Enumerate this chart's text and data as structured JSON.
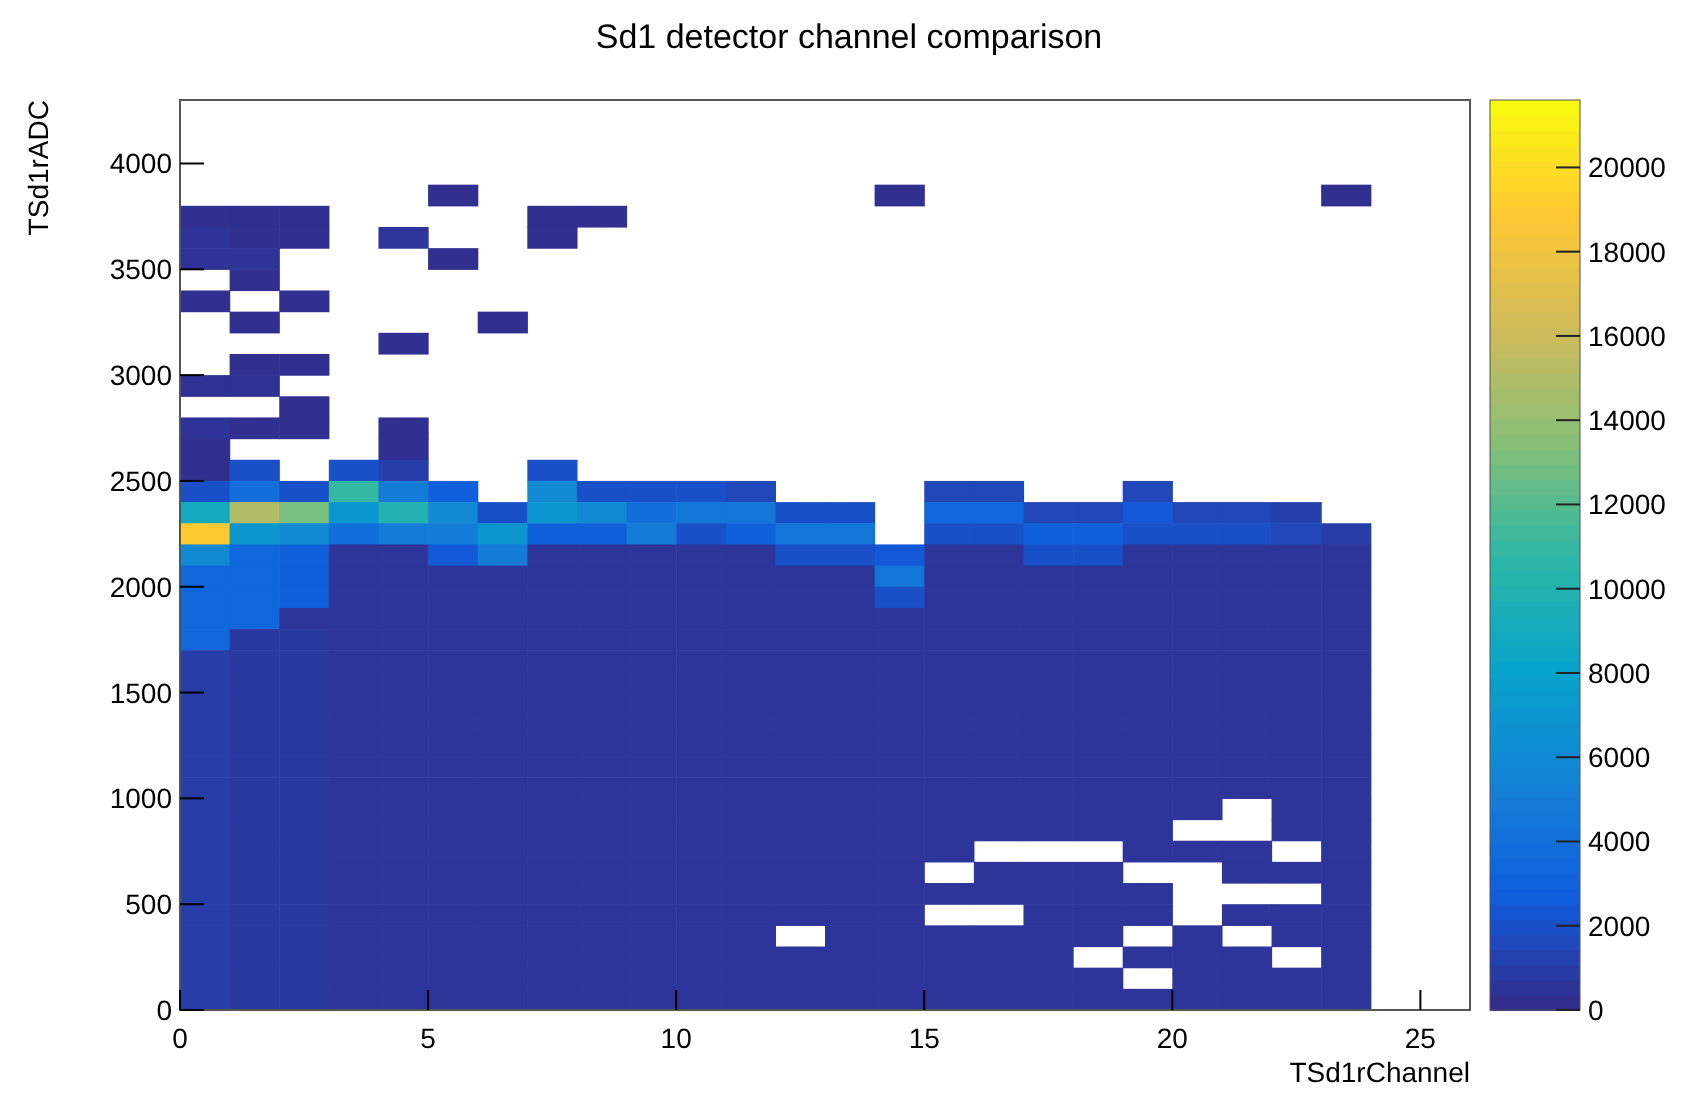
{
  "chart_data": {
    "type": "heatmap",
    "title": "Sd1 detector channel comparison",
    "xlabel": "TSd1rChannel",
    "ylabel": "TSd1rADC",
    "x": [
      0.5,
      1.5,
      2.5,
      3.5,
      4.5,
      5.5,
      6.5,
      7.5,
      8.5,
      9.5,
      10.5,
      11.5,
      12.5,
      13.5,
      14.5,
      15.5,
      16.5,
      17.5,
      18.5,
      19.5,
      20.5,
      21.5,
      22.5,
      23.5
    ],
    "y": [
      3850,
      3750,
      3650,
      3550,
      3450,
      3350,
      3250,
      3150,
      3050,
      2950,
      2850,
      2750,
      2650,
      2550,
      2450,
      2350,
      2250,
      2150,
      2050,
      1950,
      1850,
      1750,
      1650,
      1550,
      1450,
      1350,
      1250,
      1150,
      1050,
      950,
      850,
      750,
      650,
      550,
      450,
      350,
      250,
      150,
      50
    ],
    "xlim": [
      0,
      26
    ],
    "xticks": [
      0,
      5,
      10,
      15,
      20,
      25
    ],
    "ylim": [
      0,
      4300
    ],
    "yticks": [
      0,
      500,
      1000,
      1500,
      2000,
      2500,
      3000,
      3500,
      4000
    ],
    "clim": [
      0,
      21600
    ],
    "cticks": [
      0,
      2000,
      4000,
      6000,
      8000,
      10000,
      12000,
      14000,
      16000,
      18000,
      20000
    ],
    "grid": false,
    "cells": [
      [
        null,
        null,
        null,
        null,
        null,
        300,
        null,
        null,
        null,
        null,
        null,
        null,
        null,
        null,
        300,
        null,
        null,
        null,
        null,
        null,
        null,
        null,
        null,
        300
      ],
      [
        300,
        300,
        300,
        null,
        null,
        null,
        null,
        300,
        300,
        null,
        null,
        null,
        null,
        null,
        null,
        null,
        null,
        null,
        null,
        null,
        null,
        null,
        null,
        null
      ],
      [
        500,
        300,
        300,
        null,
        600,
        null,
        null,
        300,
        null,
        null,
        null,
        null,
        null,
        null,
        null,
        null,
        null,
        null,
        null,
        null,
        null,
        null,
        null,
        null
      ],
      [
        500,
        500,
        null,
        null,
        null,
        300,
        null,
        null,
        null,
        null,
        null,
        null,
        null,
        null,
        null,
        null,
        null,
        null,
        null,
        null,
        null,
        null,
        null,
        null
      ],
      [
        null,
        300,
        null,
        null,
        null,
        null,
        null,
        null,
        null,
        null,
        null,
        null,
        null,
        null,
        null,
        null,
        null,
        null,
        null,
        null,
        null,
        null,
        null,
        null
      ],
      [
        300,
        null,
        300,
        null,
        null,
        null,
        null,
        null,
        null,
        null,
        null,
        null,
        null,
        null,
        null,
        null,
        null,
        null,
        null,
        null,
        null,
        null,
        null,
        null
      ],
      [
        null,
        300,
        null,
        null,
        null,
        null,
        300,
        null,
        null,
        null,
        null,
        null,
        null,
        null,
        null,
        null,
        null,
        null,
        null,
        null,
        null,
        null,
        null,
        null
      ],
      [
        null,
        null,
        null,
        null,
        300,
        null,
        null,
        null,
        null,
        null,
        null,
        null,
        null,
        null,
        null,
        null,
        null,
        null,
        null,
        null,
        null,
        null,
        null,
        null
      ],
      [
        null,
        300,
        300,
        null,
        null,
        null,
        null,
        null,
        null,
        null,
        null,
        null,
        null,
        null,
        null,
        null,
        null,
        null,
        null,
        null,
        null,
        null,
        null,
        null
      ],
      [
        400,
        400,
        null,
        null,
        null,
        null,
        null,
        null,
        null,
        null,
        null,
        null,
        null,
        null,
        null,
        null,
        null,
        null,
        null,
        null,
        null,
        null,
        null,
        null
      ],
      [
        null,
        null,
        300,
        null,
        null,
        null,
        null,
        null,
        null,
        null,
        null,
        null,
        null,
        null,
        null,
        null,
        null,
        null,
        null,
        null,
        null,
        null,
        null,
        null
      ],
      [
        500,
        300,
        300,
        null,
        300,
        null,
        null,
        null,
        null,
        null,
        null,
        null,
        null,
        null,
        null,
        null,
        null,
        null,
        null,
        null,
        null,
        null,
        null,
        null
      ],
      [
        300,
        null,
        null,
        null,
        300,
        null,
        null,
        null,
        null,
        null,
        null,
        null,
        null,
        null,
        null,
        null,
        null,
        null,
        null,
        null,
        null,
        null,
        null,
        null
      ],
      [
        300,
        2000,
        null,
        2000,
        1000,
        null,
        null,
        2000,
        null,
        null,
        null,
        null,
        null,
        null,
        null,
        null,
        null,
        null,
        null,
        null,
        null,
        null,
        null,
        null
      ],
      [
        2000,
        4000,
        2000,
        11000,
        5000,
        3000,
        null,
        6000,
        2000,
        2000,
        2000,
        1500,
        null,
        null,
        null,
        1500,
        1500,
        null,
        null,
        1500,
        null,
        null,
        null,
        null
      ],
      [
        9000,
        15000,
        13000,
        7000,
        10000,
        6000,
        2000,
        7000,
        6000,
        4000,
        4500,
        4500,
        2000,
        2000,
        null,
        3500,
        3500,
        1500,
        1500,
        2500,
        1500,
        1500,
        1200,
        null
      ],
      [
        19000,
        7000,
        6000,
        4000,
        5000,
        5000,
        7000,
        3000,
        3000,
        5000,
        2000,
        3000,
        4500,
        4500,
        null,
        2000,
        2000,
        3000,
        3000,
        2000,
        2000,
        2000,
        1500,
        1000
      ],
      [
        6000,
        3500,
        3000,
        600,
        600,
        2500,
        5000,
        600,
        600,
        600,
        600,
        600,
        2000,
        2000,
        2500,
        600,
        600,
        2000,
        2000,
        600,
        600,
        600,
        600,
        600
      ],
      [
        3500,
        3500,
        3000,
        600,
        600,
        600,
        600,
        600,
        600,
        600,
        600,
        600,
        600,
        600,
        4500,
        600,
        600,
        600,
        600,
        600,
        600,
        600,
        600,
        600
      ],
      [
        3500,
        3500,
        3000,
        600,
        600,
        600,
        600,
        600,
        600,
        600,
        600,
        600,
        600,
        600,
        2000,
        600,
        600,
        600,
        600,
        600,
        600,
        600,
        600,
        600
      ],
      [
        3500,
        3500,
        600,
        600,
        600,
        600,
        600,
        600,
        600,
        600,
        600,
        600,
        600,
        600,
        600,
        600,
        600,
        600,
        600,
        600,
        600,
        600,
        600,
        600
      ],
      [
        3500,
        800,
        800,
        600,
        600,
        600,
        600,
        600,
        600,
        600,
        600,
        600,
        600,
        600,
        600,
        600,
        600,
        600,
        600,
        600,
        600,
        600,
        600,
        600
      ],
      [
        1000,
        800,
        800,
        600,
        600,
        600,
        600,
        600,
        600,
        600,
        600,
        600,
        600,
        600,
        600,
        600,
        600,
        600,
        600,
        600,
        600,
        600,
        600,
        600
      ],
      [
        1000,
        800,
        800,
        600,
        600,
        600,
        600,
        600,
        600,
        600,
        600,
        600,
        600,
        600,
        600,
        600,
        600,
        600,
        600,
        600,
        600,
        600,
        600,
        600
      ],
      [
        1000,
        800,
        800,
        600,
        600,
        600,
        600,
        600,
        600,
        600,
        600,
        600,
        600,
        600,
        600,
        600,
        600,
        600,
        600,
        600,
        600,
        600,
        600,
        600
      ],
      [
        1000,
        800,
        800,
        600,
        600,
        600,
        600,
        600,
        600,
        600,
        600,
        600,
        600,
        600,
        600,
        600,
        600,
        600,
        600,
        600,
        600,
        600,
        600,
        600
      ],
      [
        1000,
        800,
        800,
        600,
        600,
        600,
        600,
        600,
        600,
        600,
        600,
        600,
        600,
        600,
        600,
        600,
        600,
        600,
        600,
        600,
        600,
        600,
        600,
        600
      ],
      [
        1000,
        800,
        800,
        600,
        600,
        600,
        600,
        600,
        600,
        600,
        600,
        600,
        600,
        600,
        600,
        600,
        600,
        600,
        600,
        600,
        600,
        600,
        600,
        600
      ],
      [
        1000,
        800,
        800,
        600,
        600,
        600,
        600,
        600,
        600,
        600,
        600,
        600,
        600,
        600,
        600,
        600,
        600,
        600,
        600,
        600,
        600,
        600,
        600,
        600
      ],
      [
        1000,
        800,
        800,
        600,
        600,
        600,
        600,
        600,
        600,
        600,
        600,
        600,
        600,
        600,
        600,
        600,
        600,
        600,
        600,
        600,
        600,
        null,
        600,
        600
      ],
      [
        1000,
        800,
        800,
        600,
        600,
        600,
        600,
        600,
        600,
        600,
        600,
        600,
        600,
        600,
        600,
        600,
        600,
        600,
        600,
        600,
        null,
        null,
        600,
        600
      ],
      [
        1000,
        800,
        800,
        600,
        600,
        600,
        600,
        600,
        600,
        600,
        600,
        600,
        600,
        600,
        600,
        600,
        null,
        null,
        null,
        600,
        600,
        600,
        null,
        600
      ],
      [
        1000,
        800,
        800,
        600,
        600,
        600,
        600,
        600,
        600,
        600,
        600,
        600,
        600,
        600,
        600,
        null,
        600,
        600,
        600,
        null,
        null,
        600,
        600,
        600
      ],
      [
        1000,
        800,
        800,
        600,
        600,
        600,
        600,
        600,
        600,
        600,
        600,
        600,
        600,
        600,
        600,
        600,
        600,
        600,
        600,
        600,
        null,
        null,
        null,
        600
      ],
      [
        1000,
        800,
        800,
        600,
        600,
        600,
        600,
        600,
        600,
        600,
        600,
        600,
        600,
        600,
        600,
        null,
        null,
        600,
        600,
        600,
        null,
        600,
        600,
        600
      ],
      [
        1000,
        800,
        800,
        600,
        600,
        600,
        600,
        600,
        600,
        600,
        600,
        600,
        null,
        600,
        600,
        600,
        600,
        600,
        600,
        null,
        600,
        null,
        600,
        600
      ],
      [
        1000,
        800,
        800,
        600,
        600,
        600,
        600,
        600,
        600,
        600,
        600,
        600,
        600,
        600,
        600,
        600,
        600,
        600,
        null,
        600,
        600,
        600,
        null,
        600
      ],
      [
        1000,
        800,
        800,
        600,
        600,
        600,
        600,
        600,
        600,
        600,
        600,
        600,
        600,
        600,
        600,
        600,
        600,
        600,
        600,
        null,
        600,
        600,
        600,
        600
      ],
      [
        1000,
        800,
        800,
        600,
        600,
        600,
        600,
        600,
        600,
        600,
        600,
        600,
        600,
        600,
        600,
        600,
        600,
        600,
        600,
        600,
        600,
        600,
        600,
        600
      ]
    ]
  }
}
